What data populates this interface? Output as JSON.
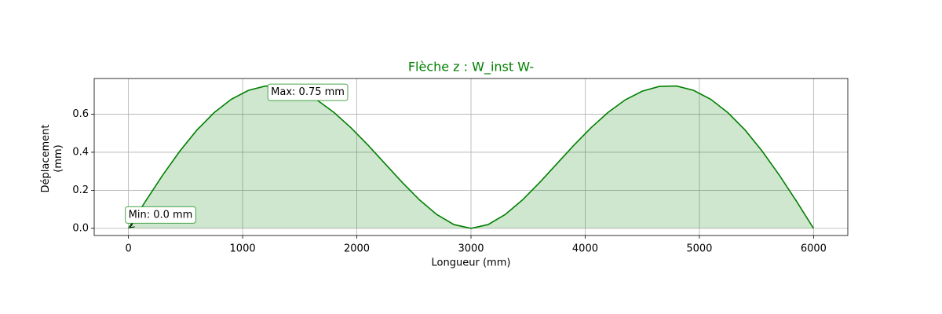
{
  "chart_data": {
    "type": "area",
    "title": "Flèche z : W_inst W-",
    "xlabel": "Longueur (mm)",
    "ylabel": [
      "Déplacement",
      "(mm)"
    ],
    "x": [
      0,
      150,
      300,
      450,
      600,
      750,
      900,
      1050,
      1200,
      1350,
      1500,
      1650,
      1800,
      1950,
      2100,
      2250,
      2400,
      2550,
      2700,
      2850,
      3000,
      3150,
      3300,
      3450,
      3600,
      3750,
      3900,
      4050,
      4200,
      4350,
      4500,
      4650,
      4800,
      4950,
      5100,
      5250,
      5400,
      5550,
      5700,
      5850,
      6000
    ],
    "series": [
      {
        "color": "#008000",
        "fill": "rgba(0,128,0,0.19)",
        "values": [
          0,
          0.143,
          0.28,
          0.406,
          0.517,
          0.608,
          0.678,
          0.725,
          0.748,
          0.746,
          0.721,
          0.675,
          0.609,
          0.528,
          0.436,
          0.338,
          0.24,
          0.149,
          0.073,
          0.02,
          0,
          0.02,
          0.073,
          0.149,
          0.24,
          0.338,
          0.436,
          0.528,
          0.609,
          0.675,
          0.721,
          0.746,
          0.748,
          0.725,
          0.678,
          0.608,
          0.517,
          0.406,
          0.28,
          0.143,
          0
        ]
      }
    ],
    "annotations": [
      {
        "text": "Min: 0.0 mm"
      },
      {
        "text": "Max: 0.75 mm"
      }
    ],
    "xlim": [
      -300,
      6300
    ],
    "ylim": [
      -0.0375,
      0.7875
    ],
    "xticks": [
      0,
      1000,
      2000,
      3000,
      4000,
      5000,
      6000
    ],
    "yticks": [
      {
        "value": 0,
        "label": "0.0"
      },
      0.2,
      0.4,
      0.6
    ],
    "grid": true
  }
}
